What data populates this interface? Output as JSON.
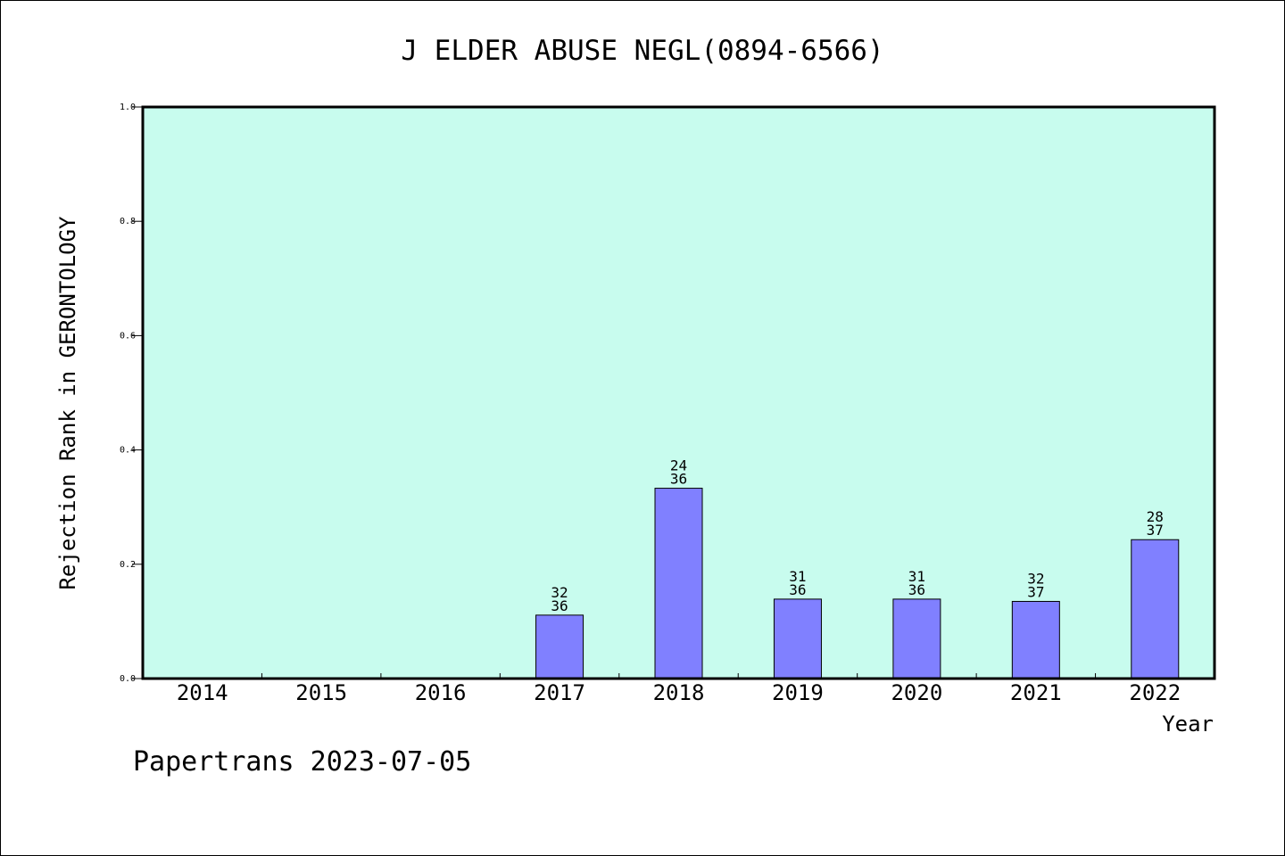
{
  "chart_data": {
    "type": "bar",
    "title": "J ELDER ABUSE NEGL(0894-6566)",
    "xlabel": "Year",
    "ylabel": "Rejection Rank in GERONTOLOGY",
    "ylim": [
      0,
      1.0
    ],
    "yticks": [
      "0.0",
      "0.2",
      "0.4",
      "0.6",
      "0.8",
      "1.0"
    ],
    "categories": [
      "2014",
      "2015",
      "2016",
      "2017",
      "2018",
      "2019",
      "2020",
      "2021",
      "2022"
    ],
    "values": [
      null,
      null,
      null,
      0.111,
      0.333,
      0.139,
      0.139,
      0.135,
      0.243
    ],
    "bar_labels": [
      null,
      null,
      null,
      [
        "32",
        "36"
      ],
      [
        "24",
        "36"
      ],
      [
        "31",
        "36"
      ],
      [
        "31",
        "36"
      ],
      [
        "32",
        "37"
      ],
      [
        "28",
        "37"
      ]
    ],
    "grid": false,
    "colors": {
      "plot_bg": "#c8fcee",
      "bar": "#8080ff"
    }
  },
  "footer": "Papertrans 2023-07-05"
}
